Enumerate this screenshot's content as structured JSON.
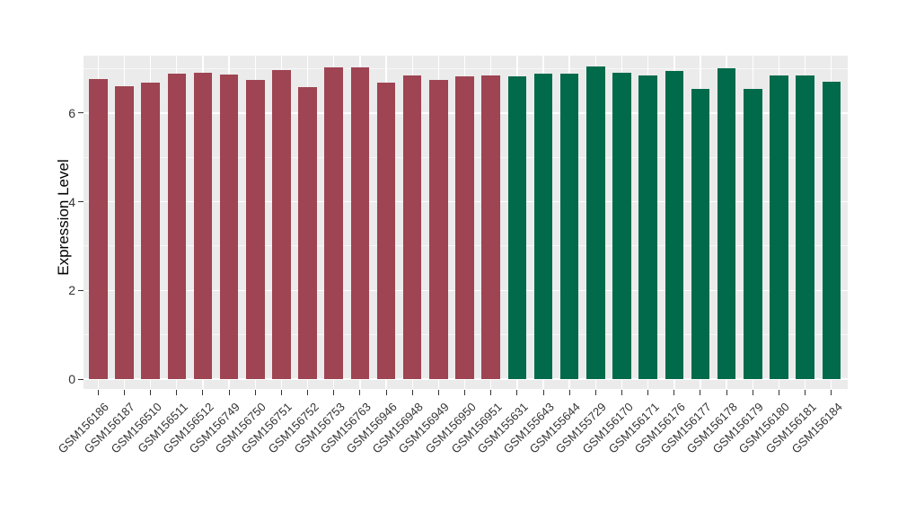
{
  "chart_data": {
    "type": "bar",
    "title": "",
    "xlabel": "",
    "ylabel": "Expression Level",
    "categories": [
      "GSM156186",
      "GSM156187",
      "GSM156510",
      "GSM156511",
      "GSM156512",
      "GSM156749",
      "GSM156750",
      "GSM156751",
      "GSM156752",
      "GSM156753",
      "GSM156763",
      "GSM156946",
      "GSM156948",
      "GSM156949",
      "GSM156950",
      "GSM156951",
      "GSM155631",
      "GSM155643",
      "GSM155644",
      "GSM155729",
      "GSM156170",
      "GSM156171",
      "GSM156176",
      "GSM156177",
      "GSM156178",
      "GSM156179",
      "GSM156180",
      "GSM156181",
      "GSM156184"
    ],
    "values": [
      6.77,
      6.6,
      6.69,
      6.88,
      6.9,
      6.87,
      6.75,
      6.97,
      6.58,
      7.03,
      7.04,
      6.69,
      6.85,
      6.74,
      6.82,
      6.85,
      6.83,
      6.88,
      6.88,
      7.06,
      6.9,
      6.85,
      6.96,
      6.54,
      7.02,
      6.55,
      6.84,
      6.85,
      6.71
    ],
    "group_colors": [
      "#9E4452",
      "#016A4B"
    ],
    "group_split_index": 16,
    "yticks": [
      0,
      2,
      4,
      6
    ],
    "minor_yticks": [
      1,
      3,
      5,
      7
    ],
    "ylim": [
      0,
      7.3
    ],
    "grid": true,
    "legend_position": "none",
    "panel_background": "#EBEBEB",
    "major_grid_color": "#FFFFFF",
    "minor_grid_color": "rgba(255,255,255,0.65)",
    "axis_text_color": "#333333",
    "tick_color": "#333333"
  }
}
